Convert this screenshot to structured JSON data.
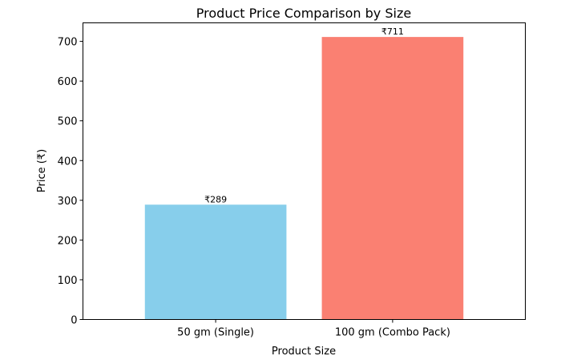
{
  "chart_data": {
    "type": "bar",
    "title": "Product Price Comparison by Size",
    "xlabel": "Product Size",
    "ylabel": "Price (₹)",
    "categories": [
      "50 gm (Single)",
      "100 gm (Combo Pack)"
    ],
    "values": [
      289,
      711
    ],
    "data_labels": [
      "₹289",
      "₹711"
    ],
    "colors": [
      "#87CEEB",
      "#FA8072"
    ],
    "ylim": [
      0,
      746.55
    ],
    "yticks": [
      0,
      100,
      200,
      300,
      400,
      500,
      600,
      700
    ],
    "grid": false,
    "legend": "none"
  }
}
